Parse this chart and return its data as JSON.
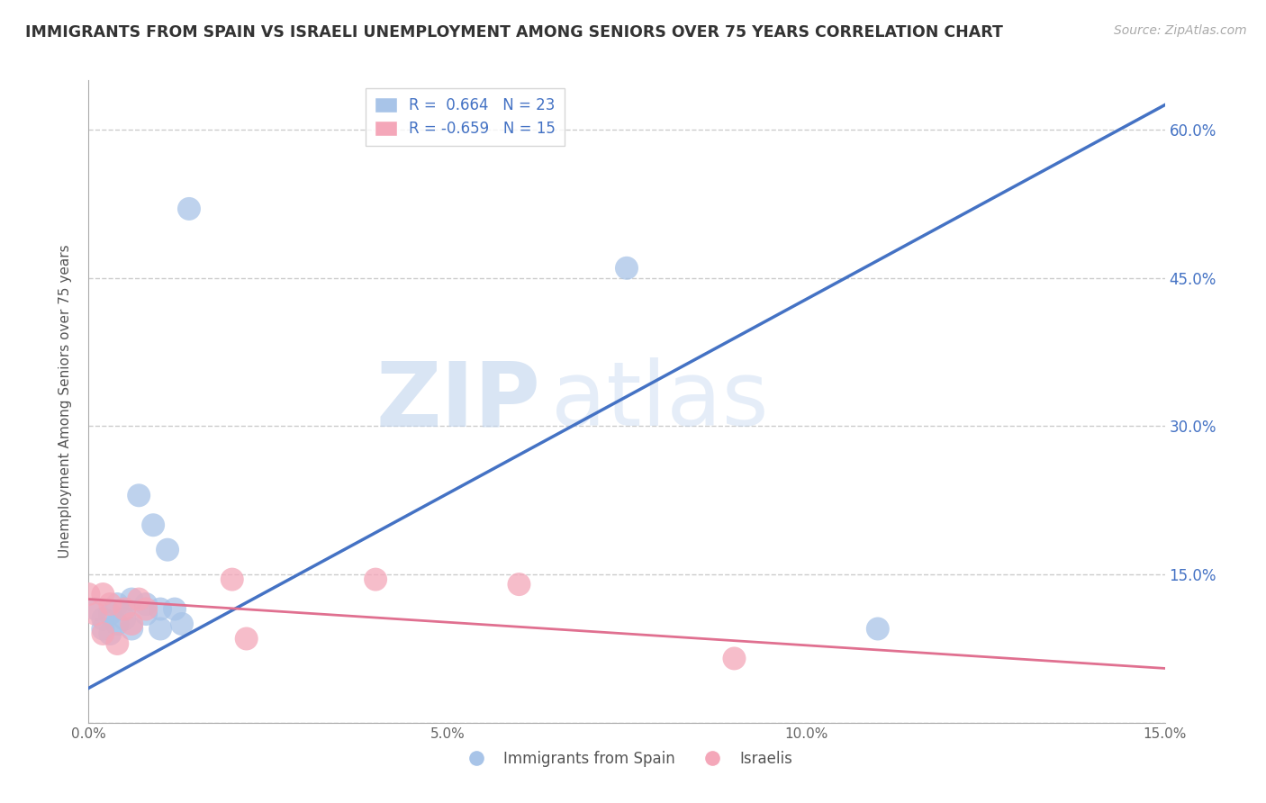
{
  "title": "IMMIGRANTS FROM SPAIN VS ISRAELI UNEMPLOYMENT AMONG SENIORS OVER 75 YEARS CORRELATION CHART",
  "source": "Source: ZipAtlas.com",
  "ylabel": "Unemployment Among Seniors over 75 years",
  "xlabel": "",
  "xlim": [
    0.0,
    0.15
  ],
  "ylim": [
    0.0,
    0.65
  ],
  "xticks": [
    0.0,
    0.05,
    0.1,
    0.15
  ],
  "xtick_labels": [
    "0.0%",
    "5.0%",
    "10.0%",
    "15.0%"
  ],
  "yticks": [
    0.0,
    0.15,
    0.3,
    0.45,
    0.6
  ],
  "ytick_labels_left": [
    "",
    "",
    "",
    "",
    ""
  ],
  "ytick_labels_right": [
    "",
    "15.0%",
    "30.0%",
    "45.0%",
    "60.0%"
  ],
  "blue_r": "0.664",
  "blue_n": "23",
  "pink_r": "-0.659",
  "pink_n": "15",
  "blue_color": "#a8c4e8",
  "pink_color": "#f4a7b9",
  "blue_line_color": "#4472c4",
  "pink_line_color": "#e07090",
  "watermark_zip": "ZIP",
  "watermark_atlas": "atlas",
  "blue_scatter_x": [
    0.001,
    0.002,
    0.002,
    0.003,
    0.003,
    0.004,
    0.004,
    0.005,
    0.005,
    0.006,
    0.006,
    0.007,
    0.008,
    0.008,
    0.009,
    0.01,
    0.01,
    0.011,
    0.012,
    0.013,
    0.014,
    0.075,
    0.11
  ],
  "blue_scatter_y": [
    0.115,
    0.105,
    0.095,
    0.11,
    0.09,
    0.12,
    0.1,
    0.115,
    0.105,
    0.125,
    0.095,
    0.23,
    0.12,
    0.11,
    0.2,
    0.115,
    0.095,
    0.175,
    0.115,
    0.1,
    0.52,
    0.46,
    0.095
  ],
  "pink_scatter_x": [
    0.0,
    0.001,
    0.002,
    0.002,
    0.003,
    0.004,
    0.005,
    0.006,
    0.007,
    0.008,
    0.02,
    0.022,
    0.04,
    0.06,
    0.09
  ],
  "pink_scatter_y": [
    0.13,
    0.11,
    0.13,
    0.09,
    0.12,
    0.08,
    0.115,
    0.1,
    0.125,
    0.115,
    0.145,
    0.085,
    0.145,
    0.14,
    0.065
  ],
  "blue_trend_x": [
    0.0,
    0.15
  ],
  "blue_trend_y": [
    0.035,
    0.625
  ],
  "pink_trend_x": [
    0.0,
    0.15
  ],
  "pink_trend_y": [
    0.125,
    0.055
  ],
  "grid_color": "#cccccc",
  "background_color": "#ffffff",
  "legend_label_blue": "R =  0.664   N = 23",
  "legend_label_pink": "R = -0.659   N = 15",
  "bottom_legend_blue": "Immigrants from Spain",
  "bottom_legend_pink": "Israelis"
}
